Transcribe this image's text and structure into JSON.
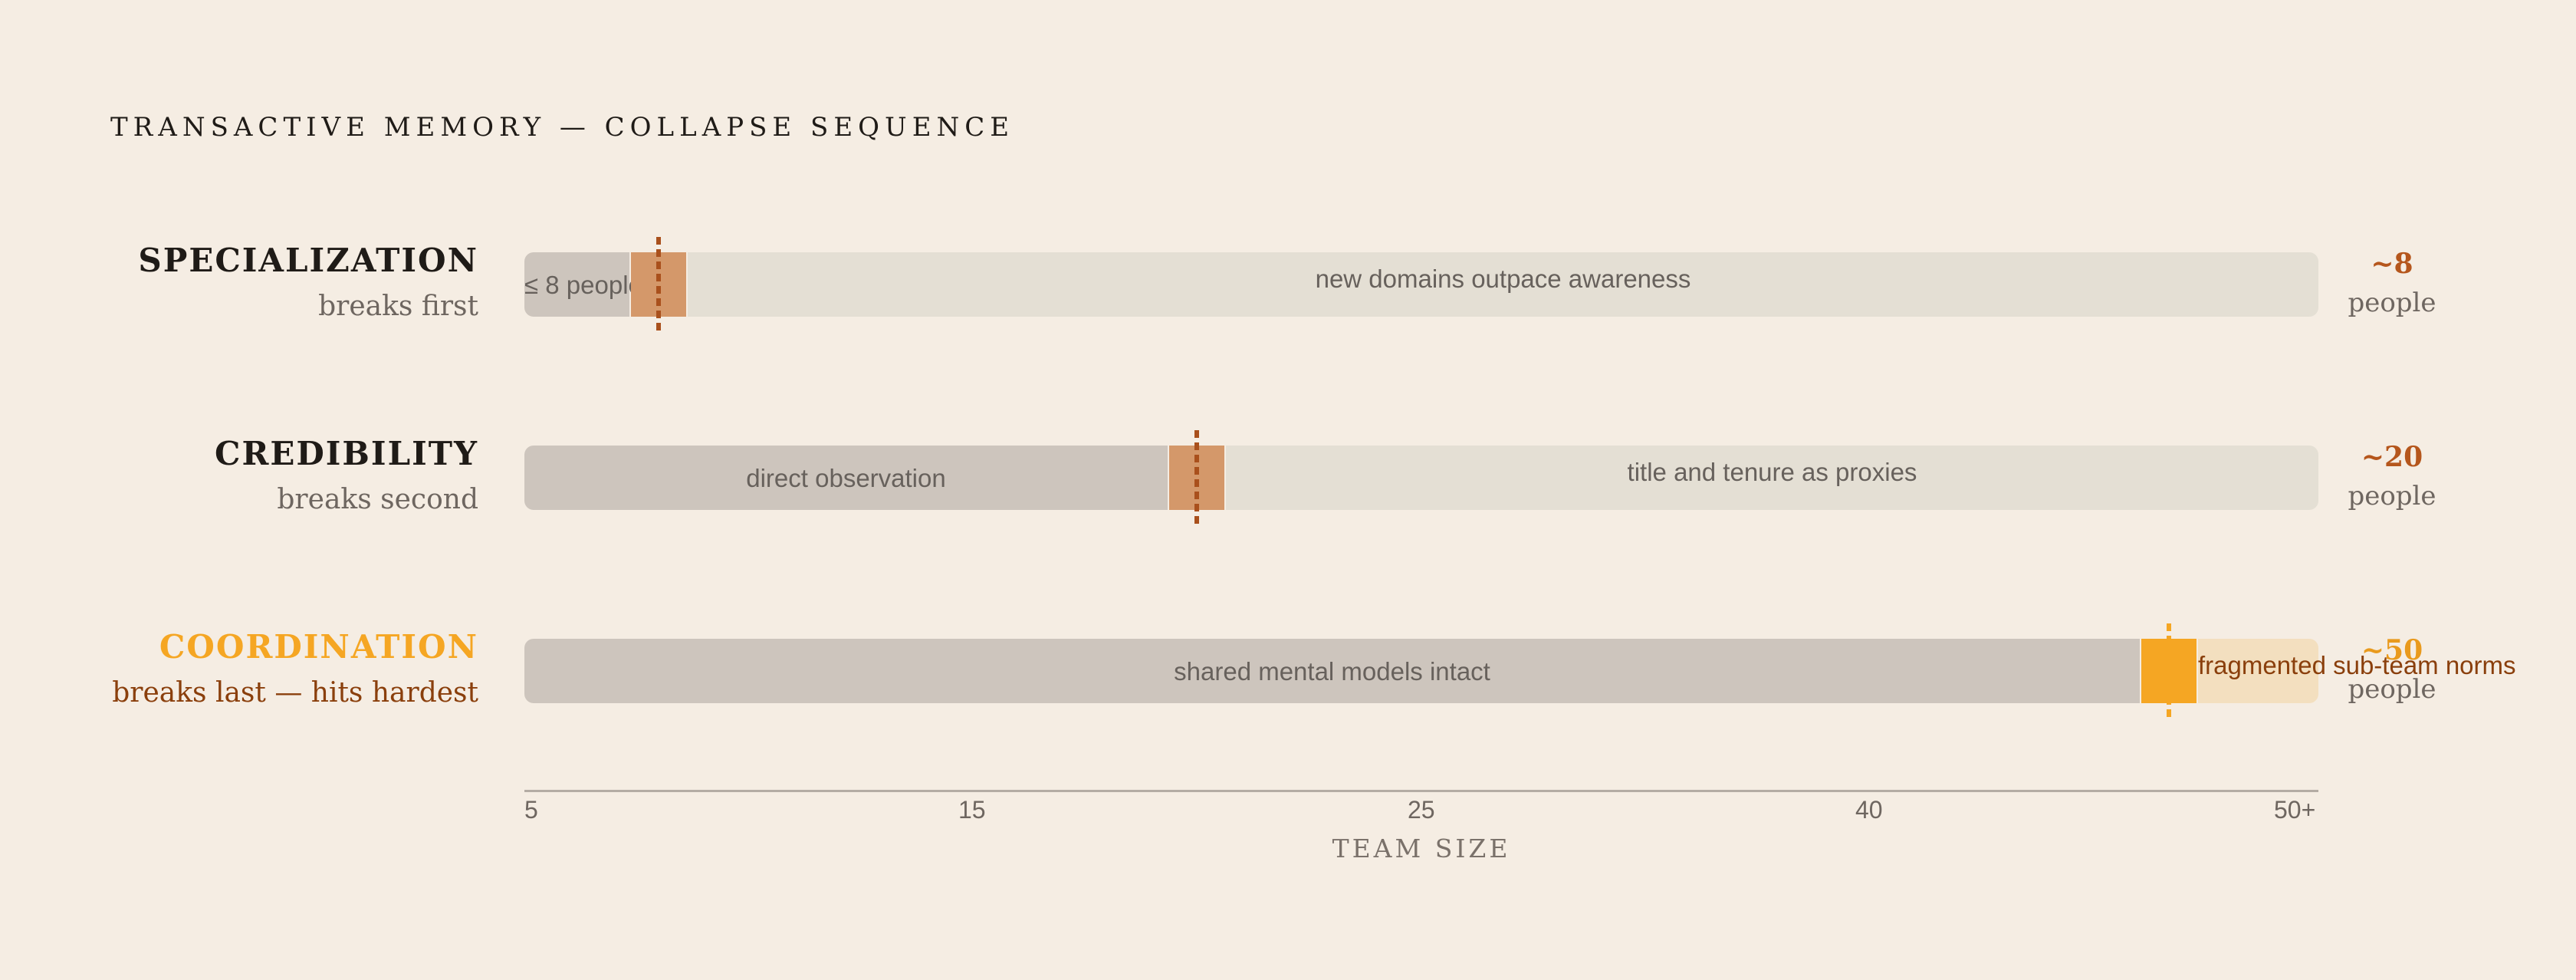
{
  "chart_data": {
    "type": "bar",
    "title": "TRANSACTIVE MEMORY — COLLAPSE SEQUENCE",
    "xlabel": "TEAM SIZE",
    "x_ticks": [
      "5",
      "15",
      "25",
      "40",
      "50+"
    ],
    "rows": [
      {
        "name": "SPECIALIZATION",
        "subtitle": "breaks first",
        "before_label": "≤ 8 people",
        "after_label": "new domains outpace awareness",
        "breakpoint": 8,
        "value_label": "~8",
        "unit_label": "people"
      },
      {
        "name": "CREDIBILITY",
        "subtitle": "breaks second",
        "before_label": "direct observation",
        "after_label": "title and tenure as proxies",
        "breakpoint": 20,
        "value_label": "~20",
        "unit_label": "people"
      },
      {
        "name": "COORDINATION",
        "subtitle": "breaks last — hits hardest",
        "before_label": "shared mental models intact",
        "after_label": "fragmented sub-team norms",
        "breakpoint": 50,
        "value_label": "~50",
        "unit_label": "people"
      }
    ]
  },
  "colors": {
    "background": "#f5ede3",
    "bar_before": "#cdc5bd",
    "bar_after": "#e4dfd4",
    "bar_after_highlight": "#f3dfbf",
    "marker_muted": "#d4986a",
    "marker_muted_line": "#a9501c",
    "marker_highlight": "#f5a623",
    "value_muted": "#b5561c",
    "value_highlight": "#e99a1d",
    "subtitle_highlight": "#8a3f0c"
  }
}
